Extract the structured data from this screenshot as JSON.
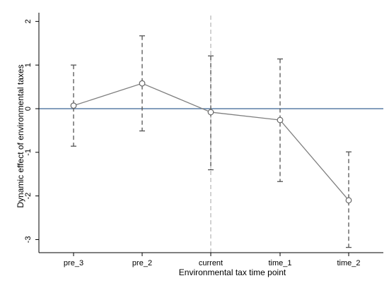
{
  "chart_data": {
    "type": "line",
    "title": "",
    "xlabel": "Environmental tax time point",
    "ylabel": "Dynamic effect of environmental taxes",
    "categories": [
      "pre_3",
      "pre_2",
      "current",
      "time_1",
      "time_2"
    ],
    "ylim": [
      -3.3,
      2.2
    ],
    "yticks": [
      -3,
      -2,
      -1,
      0,
      1,
      2
    ],
    "series": [
      {
        "values": [
          0.07,
          0.58,
          -0.08,
          -0.26,
          -2.1
        ],
        "ci_lower": [
          -0.86,
          -0.51,
          -1.4,
          -1.67,
          -3.18
        ],
        "ci_upper": [
          1.0,
          1.67,
          1.21,
          1.14,
          -0.99
        ]
      }
    ],
    "reference_lines": {
      "horizontal_y": 0,
      "vertical_category": "current"
    },
    "grid": false,
    "colors": {
      "series_line": "#7f7f7f",
      "marker": "#666666",
      "ci": "#555555",
      "zero_line": "#5b7fa6",
      "vertical_line": "#b3b3b3"
    }
  }
}
